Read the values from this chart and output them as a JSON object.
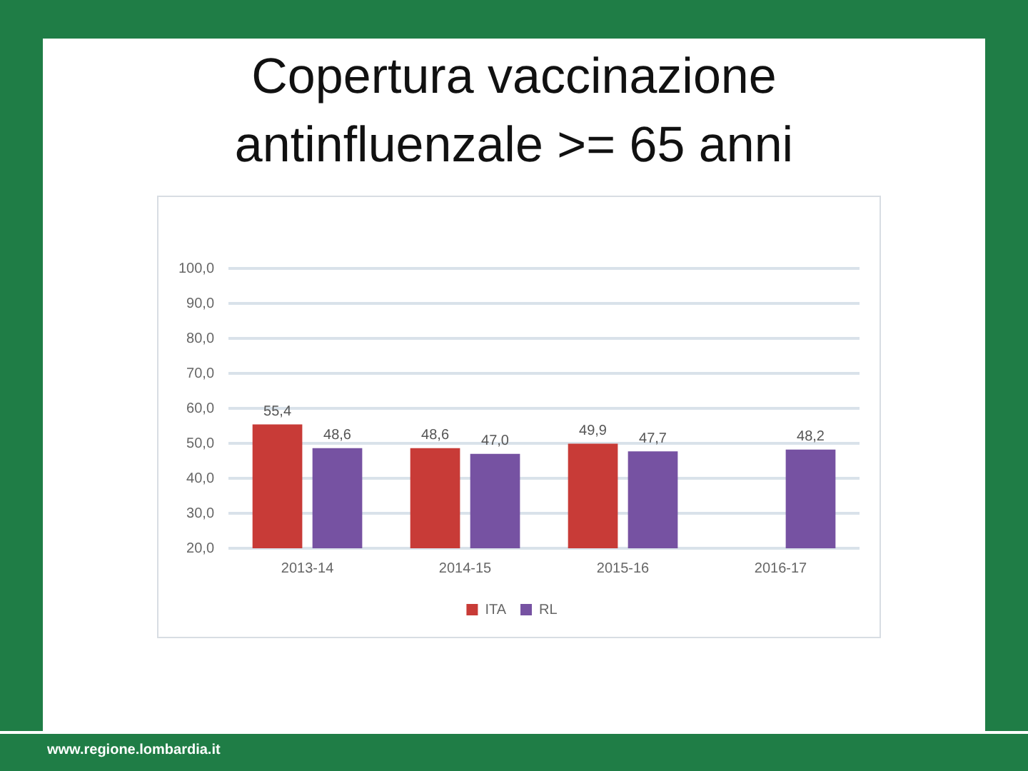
{
  "chart_data": {
    "type": "bar",
    "title": "Copertura vaccinazione antinfluenzale >= 65 anni",
    "categories": [
      "2013-14",
      "2014-15",
      "2015-16",
      "2016-17"
    ],
    "series": [
      {
        "name": "ITA",
        "color": "#c83b37",
        "values": [
          55.4,
          48.6,
          49.9,
          null
        ],
        "value_labels": [
          "55,4",
          "48,6",
          "49,9",
          null
        ]
      },
      {
        "name": "RL",
        "color": "#7652a2",
        "values": [
          48.6,
          47.0,
          47.7,
          48.2
        ],
        "value_labels": [
          "48,6",
          "47,0",
          "47,7",
          "48,2"
        ]
      }
    ],
    "ylim": [
      20,
      100
    ],
    "yticks": [
      {
        "value": 20,
        "label": "20,0"
      },
      {
        "value": 30,
        "label": "30,0"
      },
      {
        "value": 40,
        "label": "40,0"
      },
      {
        "value": 50,
        "label": "50,0"
      },
      {
        "value": 60,
        "label": "60,0"
      },
      {
        "value": 70,
        "label": "70,0"
      },
      {
        "value": 80,
        "label": "80,0"
      },
      {
        "value": 90,
        "label": "90,0"
      },
      {
        "value": 100,
        "label": "100,0"
      }
    ],
    "grid": "y",
    "legend": "bottom",
    "annotations": [
      "www.regione.lombardia.it"
    ]
  }
}
